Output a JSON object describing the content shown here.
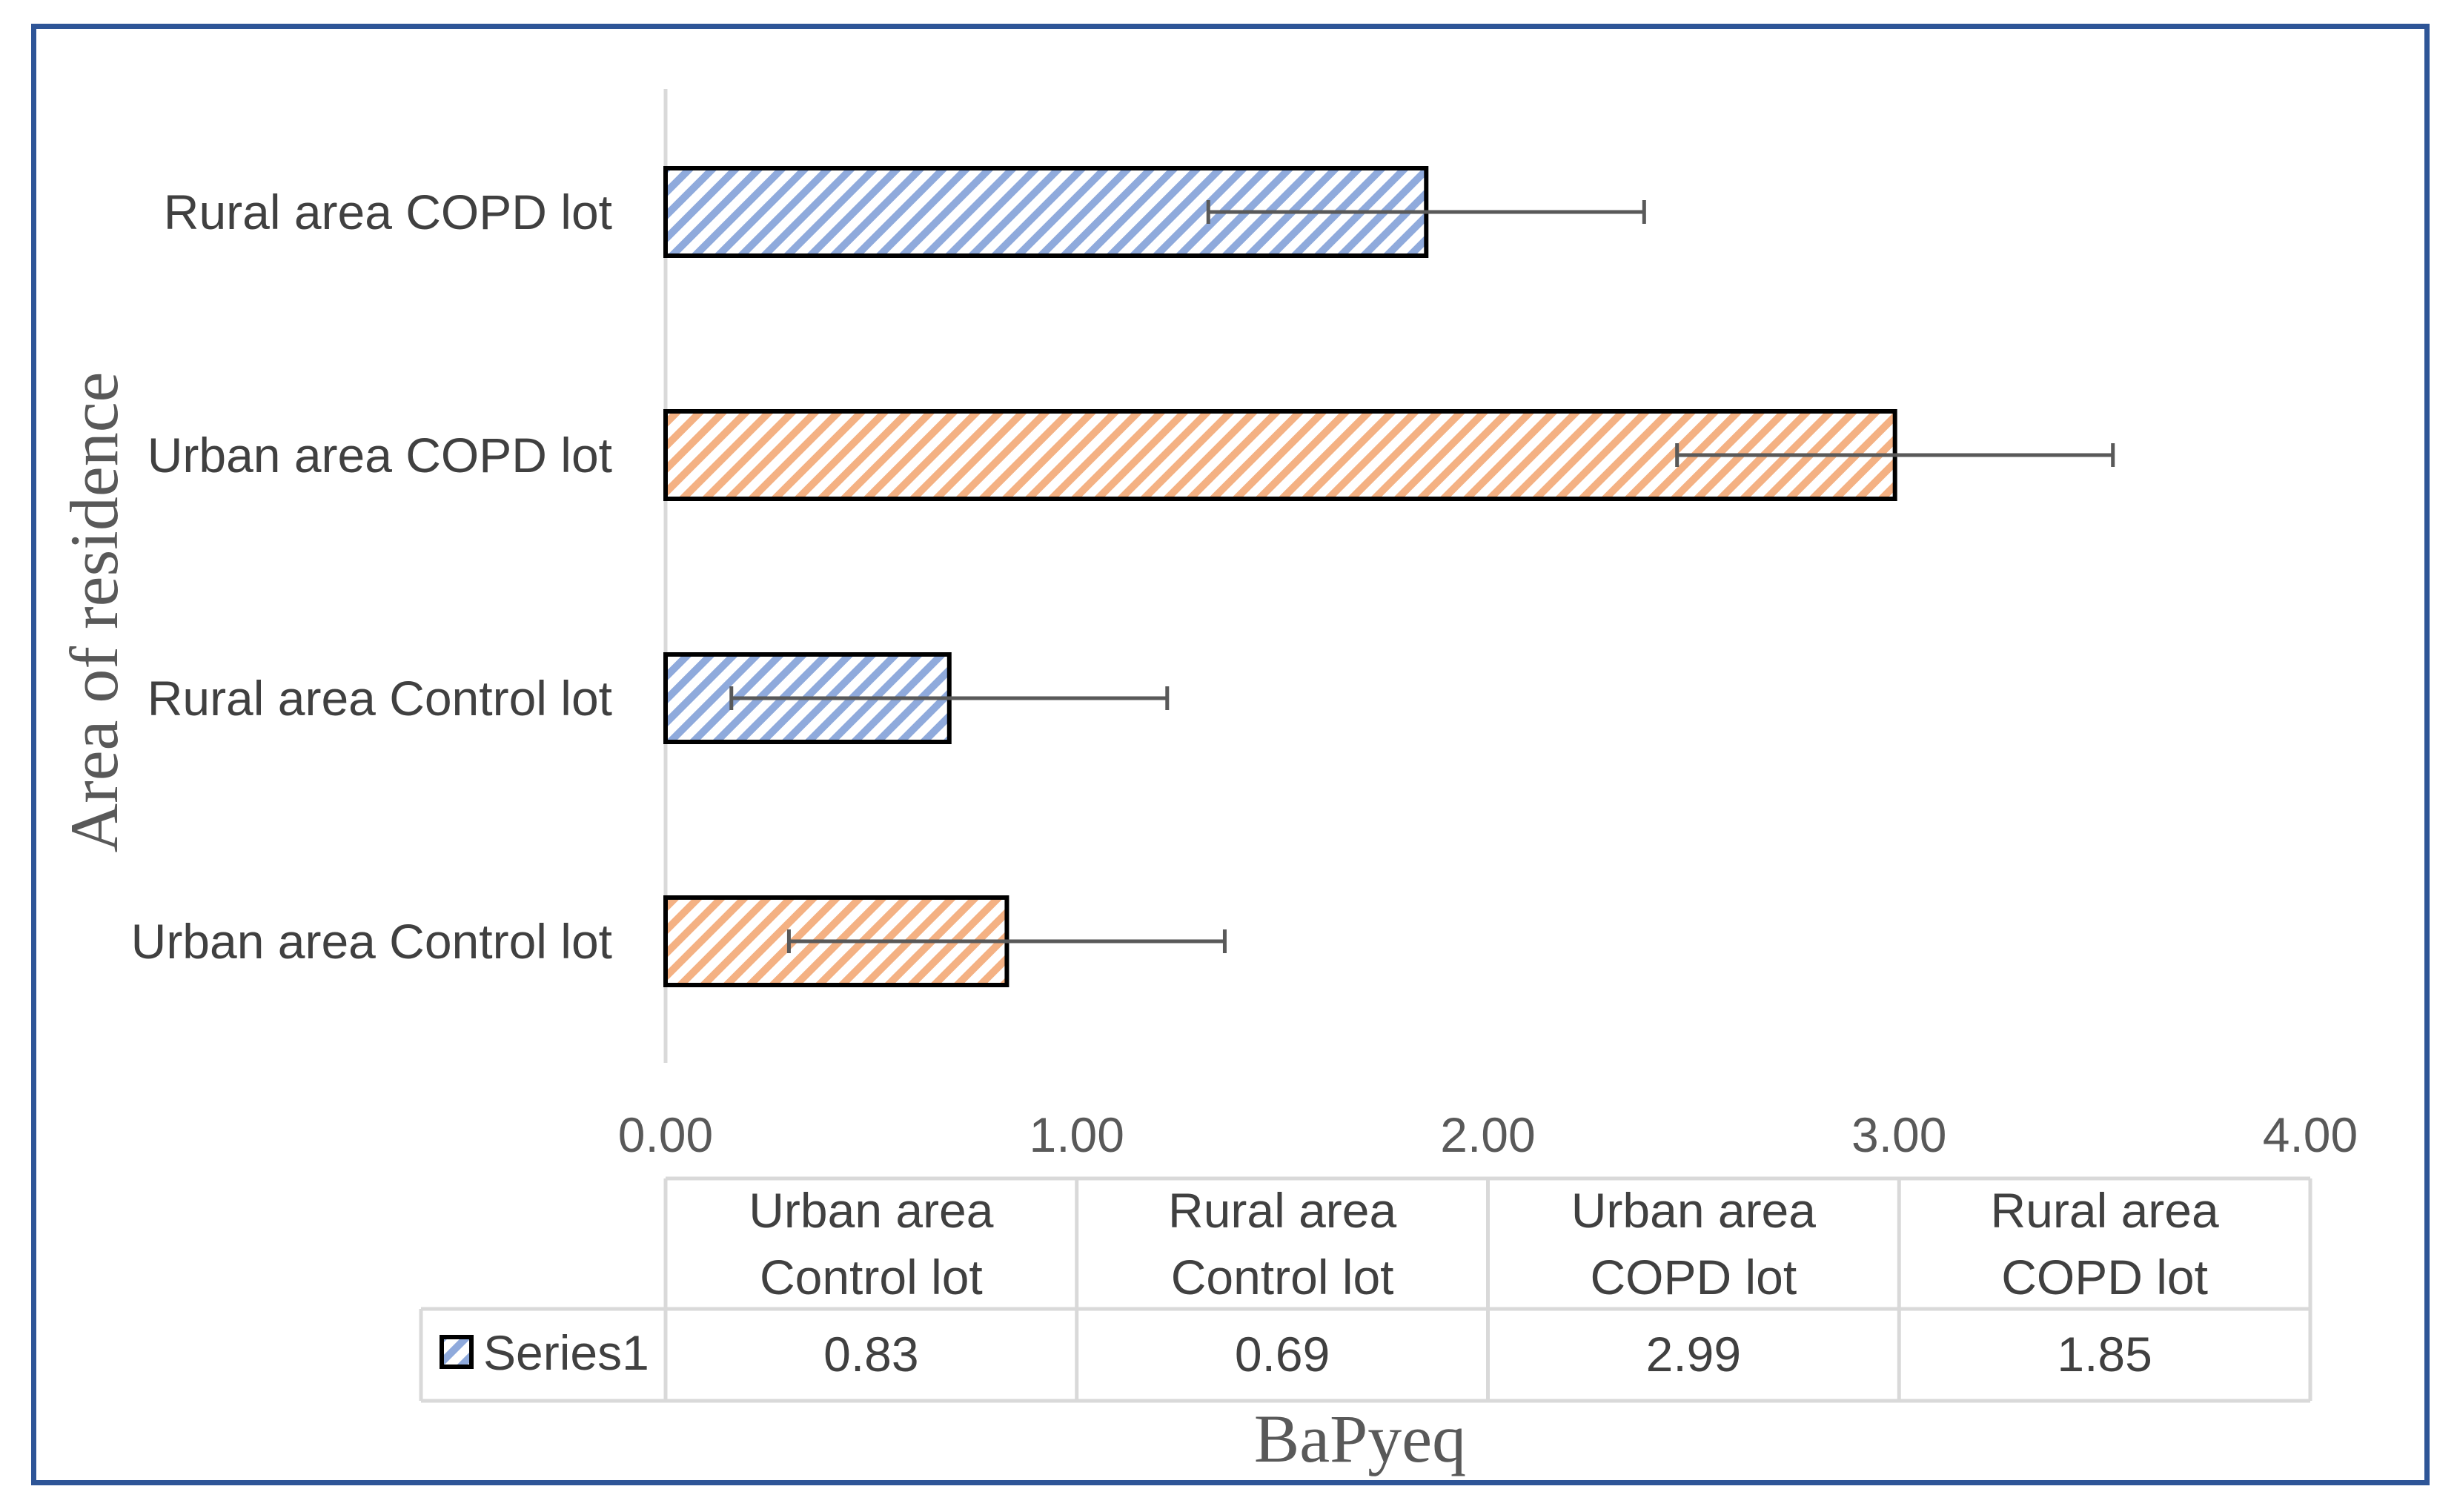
{
  "chart_data": {
    "type": "bar",
    "orientation": "horizontal",
    "categories": [
      "Urban area Control lot",
      "Rural area Control lot",
      "Urban area COPD lot",
      "Rural area COPD lot"
    ],
    "table_headers": [
      [
        "Urban area",
        "Control lot"
      ],
      [
        "Rural area",
        "Control lot"
      ],
      [
        "Urban area",
        "COPD lot"
      ],
      [
        "Rural area",
        "COPD lot"
      ]
    ],
    "series": [
      {
        "name": "Series1",
        "values": [
          0.83,
          0.69,
          2.99,
          1.85
        ],
        "value_labels": [
          "0.83",
          "0.69",
          "2.99",
          "1.85"
        ],
        "error_low": [
          0.3,
          0.16,
          2.46,
          1.32
        ],
        "error_high": [
          1.36,
          1.22,
          3.52,
          2.38
        ]
      }
    ],
    "bar_colors": [
      "#F4B183",
      "#8FAADC",
      "#F4B183",
      "#8FAADC"
    ],
    "xlim": [
      0,
      4
    ],
    "xticks": [
      0,
      1,
      2,
      3,
      4
    ],
    "xtick_labels": [
      "0.00",
      "1.00",
      "2.00",
      "3.00",
      "4.00"
    ],
    "xlabel": "BaPyeq",
    "ylabel": "Area of residence",
    "data_table": true,
    "legend_key": "Series1"
  },
  "colors": {
    "frame": "#2E5597",
    "axis": "#D9D9D9",
    "bar_outline": "#000000",
    "error_bar": "#595959"
  }
}
